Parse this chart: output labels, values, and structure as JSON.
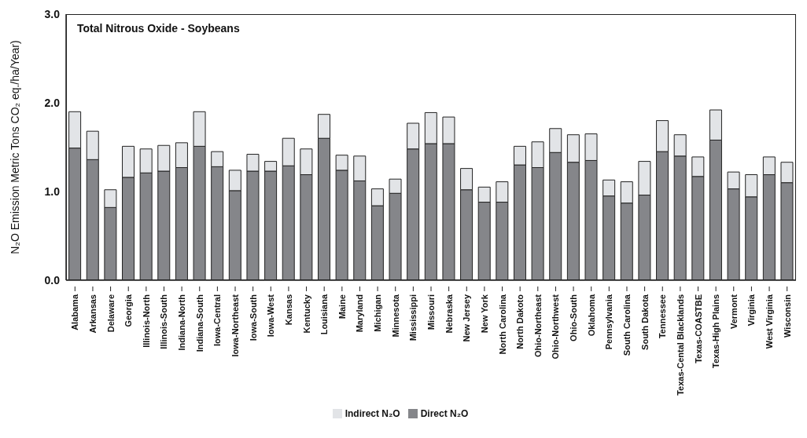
{
  "chart_data": {
    "type": "bar",
    "title": "Total Nitrous Oxide - Soybeans",
    "ylabel": "N₂O Emission Metric Tons CO₂ eq./ha/Year)",
    "stacked": true,
    "legend": "bottom",
    "grid": false,
    "categories": [
      "Alabama",
      "Arkansas",
      "Delaware",
      "Georgia",
      "Illinois-North",
      "Illinois-South",
      "Indiana-North",
      "Indiana-South",
      "Iowa-Central",
      "Iowa-Northeast",
      "Iowa-South",
      "Iowa-West",
      "Kansas",
      "Kentucky",
      "Louisiana",
      "Maine",
      "Maryland",
      "Michigan",
      "Minnesota",
      "Mississippi",
      "Missouri",
      "Nebraska",
      "New Jersey",
      "New York",
      "North Carolina",
      "North Dakoto",
      "Ohio-Northeast",
      "Ohio-Northwest",
      "Ohio-South",
      "Oklahoma",
      "Pennsylvania",
      "South Carolina",
      "South Dakota",
      "Tennessee",
      "Texas-Cental Blacklands",
      "Texas-COASTBE",
      "Texas-High Plains",
      "Vermont",
      "Virginia",
      "West Virginia",
      "Wisconsin"
    ],
    "series": [
      {
        "name": "Direct N₂O",
        "color": "#85868a",
        "values": [
          1.49,
          1.36,
          0.82,
          1.16,
          1.21,
          1.23,
          1.27,
          1.51,
          1.28,
          1.01,
          1.23,
          1.23,
          1.29,
          1.19,
          1.6,
          1.24,
          1.12,
          0.84,
          0.98,
          1.48,
          1.54,
          1.54,
          1.02,
          0.88,
          0.88,
          1.3,
          1.27,
          1.44,
          1.33,
          1.35,
          0.95,
          0.87,
          0.96,
          1.45,
          1.4,
          1.17,
          1.58,
          1.03,
          0.94,
          1.19,
          1.1
        ]
      },
      {
        "name": "Indirect N₂O",
        "color": "#e2e4e7",
        "values": [
          0.41,
          0.32,
          0.2,
          0.35,
          0.27,
          0.29,
          0.28,
          0.39,
          0.17,
          0.23,
          0.19,
          0.11,
          0.31,
          0.29,
          0.27,
          0.17,
          0.28,
          0.19,
          0.16,
          0.29,
          0.35,
          0.3,
          0.24,
          0.17,
          0.23,
          0.21,
          0.29,
          0.27,
          0.31,
          0.3,
          0.18,
          0.24,
          0.38,
          0.35,
          0.24,
          0.22,
          0.34,
          0.19,
          0.25,
          0.2,
          0.23
        ]
      }
    ],
    "ylim": [
      0,
      3
    ],
    "yticks": [
      {
        "value": 0,
        "label": "0.0"
      },
      {
        "value": 1,
        "label": "1.0"
      },
      {
        "value": 2,
        "label": "2.0"
      },
      {
        "value": 3,
        "label": "3.0"
      }
    ]
  }
}
